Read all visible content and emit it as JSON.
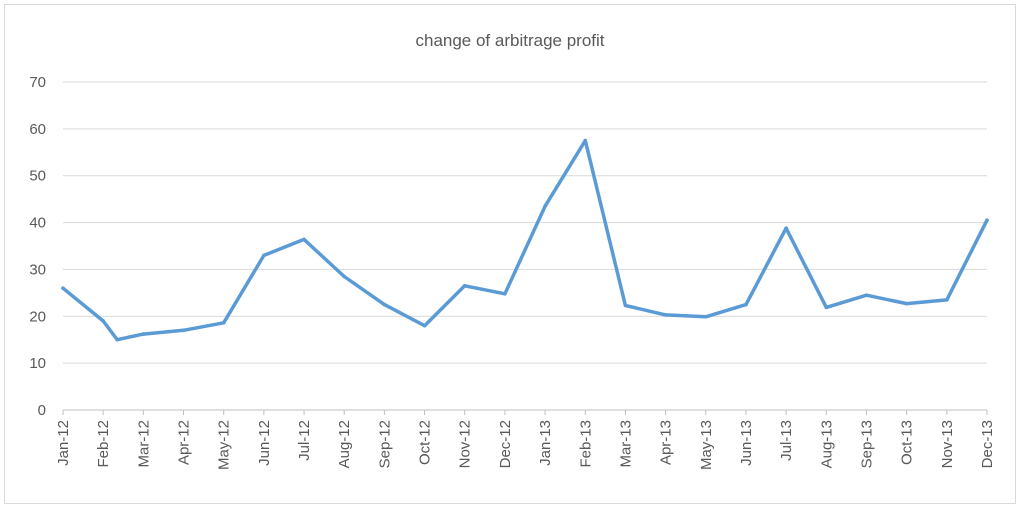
{
  "chart_data": {
    "type": "line",
    "title": "change of arbitrage profit",
    "categories": [
      "Jan-12",
      "Feb-12",
      "Mar-12",
      "Apr-12",
      "May-12",
      "Jun-12",
      "Jul-12",
      "Aug-12",
      "Sep-12",
      "Oct-12",
      "Nov-12",
      "Dec-12",
      "Jan-13",
      "Feb-13",
      "Mar-13",
      "Apr-13",
      "May-13",
      "Jun-13",
      "Jul-13",
      "Aug-13",
      "Sep-13",
      "Oct-13",
      "Nov-13",
      "Dec-13"
    ],
    "series": [
      {
        "points": [
          {
            "x": "Jan-12",
            "y": 26
          },
          {
            "x": "Feb-12",
            "y": 19
          },
          {
            "x": "Feb-12 (mid)",
            "y": 15
          },
          {
            "x": "Mar-12",
            "y": 16.2
          },
          {
            "x": "Apr-12",
            "y": 17
          },
          {
            "x": "May-12",
            "y": 18.6
          },
          {
            "x": "Jun-12",
            "y": 33
          },
          {
            "x": "Jul-12",
            "y": 36.4
          },
          {
            "x": "Aug-12",
            "y": 28.5
          },
          {
            "x": "Sep-12",
            "y": 22.5
          },
          {
            "x": "Oct-12",
            "y": 18
          },
          {
            "x": "Nov-12",
            "y": 26.5
          },
          {
            "x": "Dec-12",
            "y": 24.8
          },
          {
            "x": "Jan-13",
            "y": 43.5
          },
          {
            "x": "Feb-13",
            "y": 57.5
          },
          {
            "x": "Mar-13",
            "y": 22.3
          },
          {
            "x": "Apr-13",
            "y": 20.3
          },
          {
            "x": "May-13",
            "y": 19.9
          },
          {
            "x": "Jun-13",
            "y": 22.5
          },
          {
            "x": "Jul-13",
            "y": 38.8
          },
          {
            "x": "Aug-13",
            "y": 21.9
          },
          {
            "x": "Sep-13",
            "y": 24.5
          },
          {
            "x": "Oct-13",
            "y": 22.7
          },
          {
            "x": "Nov-13",
            "y": 23.5
          },
          {
            "x": "Dec-13",
            "y": 40.5
          }
        ]
      }
    ],
    "y_ticks": [
      0,
      10,
      20,
      30,
      40,
      50,
      60,
      70
    ],
    "ylim": [
      0,
      70
    ],
    "grid": true,
    "legend": "none",
    "line_color": "#5b9bd5",
    "grid_color": "#d9d9d9"
  }
}
